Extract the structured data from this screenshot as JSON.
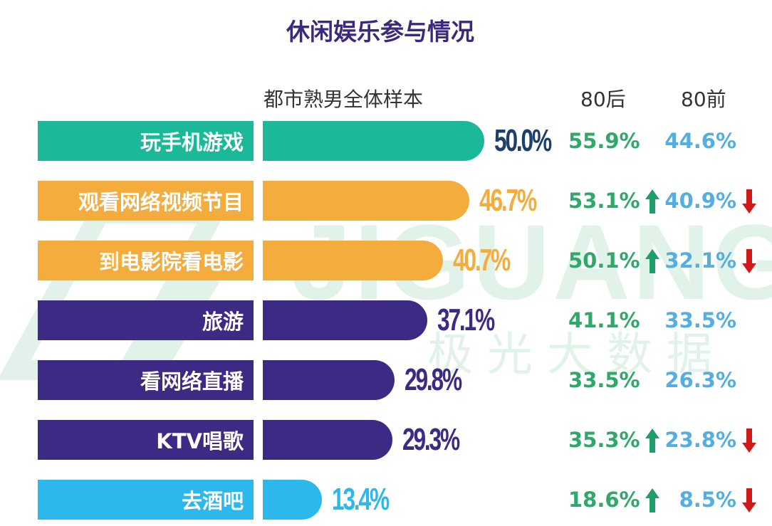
{
  "title": "休闲娱乐参与情况",
  "watermark": {
    "brand": "JIGUANG",
    "cn": "极光大数据"
  },
  "colors": {
    "teal": "#1bb89a",
    "orange": "#f4ad3d",
    "purple": "#3d2a85",
    "cyan": "#2cb8ea",
    "pct_green": "#2fa86a",
    "pct_blue": "#55aee0",
    "arrow_up": "#1f9d6a",
    "arrow_down": "#cf1a1a",
    "title": "#3a2a7d"
  },
  "chart_data": {
    "type": "bar",
    "orientation": "horizontal",
    "title": "休闲娱乐参与情况",
    "column_headers": {
      "sample": "都市熟男全体样本",
      "post80": "80后",
      "pre80": "80前"
    },
    "categories": [
      "玩手机游戏",
      "观看网络视频节目",
      "到电影院看电影",
      "旅游",
      "看网络直播",
      "KTV唱歌",
      "去酒吧"
    ],
    "values": [
      50.0,
      46.7,
      40.7,
      37.1,
      29.8,
      29.3,
      13.4
    ],
    "value_labels": [
      "50.0%",
      "46.7%",
      "40.7%",
      "37.1%",
      "29.8%",
      "29.3%",
      "13.4%"
    ],
    "bar_colors": [
      "#1bb89a",
      "#f4ad3d",
      "#f4ad3d",
      "#3d2a85",
      "#3d2a85",
      "#3d2a85",
      "#2cb8ea"
    ],
    "label_colors": [
      "#1f3f6b",
      "#f4ad3d",
      "#f4ad3d",
      "#3d2a85",
      "#3d2a85",
      "#3d2a85",
      "#2cb8ea"
    ],
    "post80": [
      "55.9%",
      "53.1%",
      "50.1%",
      "41.1%",
      "33.5%",
      "35.3%",
      "18.6%"
    ],
    "pre80": [
      "44.6%",
      "40.9%",
      "32.1%",
      "33.5%",
      "26.3%",
      "23.8%",
      "8.5%"
    ],
    "post80_arrow": [
      "",
      "up",
      "up",
      "",
      "",
      "up",
      "up"
    ],
    "pre80_arrow": [
      "",
      "down",
      "down",
      "",
      "",
      "down",
      "down"
    ],
    "xlim": [
      0,
      50
    ]
  }
}
